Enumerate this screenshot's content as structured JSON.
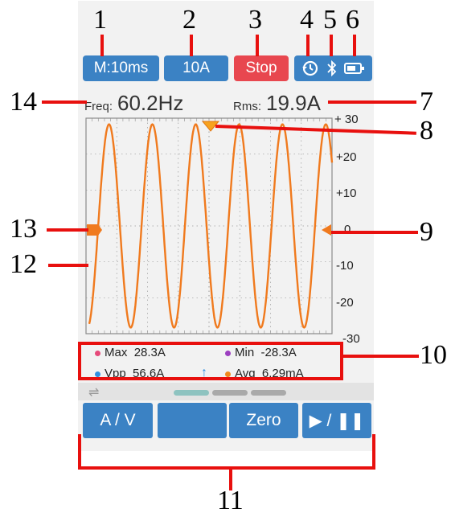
{
  "callouts": [
    "1",
    "2",
    "3",
    "4",
    "5",
    "6",
    "7",
    "8",
    "9",
    "10",
    "11",
    "12",
    "13",
    "14"
  ],
  "toolbar": {
    "timebase": "M:10ms",
    "range": "10A",
    "run_state": "Stop",
    "icons": [
      "history-icon",
      "bluetooth-icon",
      "battery-icon"
    ]
  },
  "readouts": {
    "freq_label": "Freq:",
    "freq_value": "60.2Hz",
    "rms_label": "Rms:",
    "rms_value": "19.9A"
  },
  "scope": {
    "y_ticks": [
      "+ 30",
      "+20",
      "+10",
      "0",
      "-10",
      "-20",
      "-30"
    ],
    "trace_color": "#f07a1e",
    "grid_color": "#9a9a9a"
  },
  "stats": {
    "max_label": "Max",
    "max_value": "28.3A",
    "min_label": "Min",
    "min_value": "-28.3A",
    "vpp_label": "Vpp",
    "vpp_value": "56.6A",
    "avg_label": "Avg",
    "avg_value": "6.29mA",
    "dot_colors": {
      "max": "#e64a7a",
      "min": "#9c3fc0",
      "vpp": "#2f8fe0",
      "avg": "#f08a1e"
    }
  },
  "bottom": {
    "buttons": [
      "A / V",
      "",
      "Zero",
      "▶ / ❚❚"
    ],
    "page_indicator": 3,
    "active_page": 1
  },
  "chart_data": {
    "type": "line",
    "title": "",
    "xlabel": "",
    "ylabel": "",
    "ylim": [
      -30,
      30
    ],
    "yticks": [
      30,
      20,
      10,
      0,
      -10,
      -20,
      -30
    ],
    "series": [
      {
        "amplitude": 28.3,
        "cycles_visible": 5.6,
        "phase_start": -1.3
      }
    ],
    "grid": true
  }
}
